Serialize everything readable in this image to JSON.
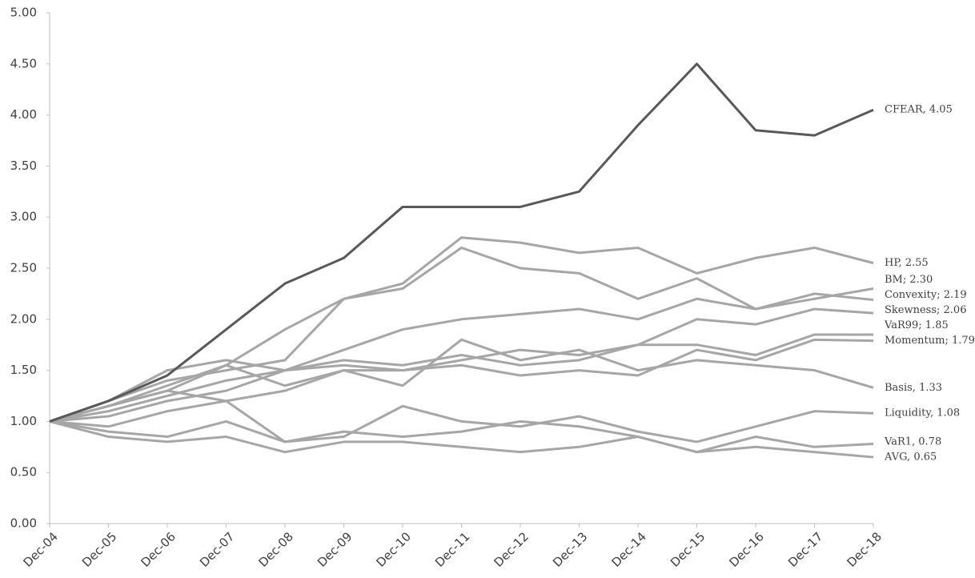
{
  "chart_data": {
    "type": "line",
    "categories": [
      "Dec-04",
      "Dec-05",
      "Dec-06",
      "Dec-07",
      "Dec-08",
      "Dec-09",
      "Dec-10",
      "Dec-11",
      "Dec-12",
      "Dec-13",
      "Dec-14",
      "Dec-15",
      "Dec-16",
      "Dec-17",
      "Dec-18"
    ],
    "ylim": [
      0,
      5
    ],
    "yticks": [
      {
        "value": 0,
        "label": "0.00"
      },
      {
        "value": 0.5,
        "label": "0.50"
      },
      {
        "value": 1,
        "label": "1.00"
      },
      {
        "value": 1.5,
        "label": "1.50"
      },
      {
        "value": 2,
        "label": "2.00"
      },
      {
        "value": 2.5,
        "label": "2.50"
      },
      {
        "value": 3,
        "label": "3.00"
      },
      {
        "value": 3.5,
        "label": "3.50"
      },
      {
        "value": 4,
        "label": "4.00"
      },
      {
        "value": 4.5,
        "label": "4.50"
      },
      {
        "value": 5,
        "label": "5.00"
      }
    ],
    "grid": false,
    "series": [
      {
        "name": "AVG, 0.65",
        "color": "#a6a6a6",
        "values": [
          1.0,
          0.85,
          0.8,
          0.85,
          0.7,
          0.8,
          0.8,
          0.75,
          0.7,
          0.75,
          0.85,
          0.7,
          0.75,
          0.7,
          0.65
        ]
      },
      {
        "name": "VaR1, 0.78",
        "color": "#a6a6a6",
        "values": [
          1.0,
          0.95,
          1.1,
          1.2,
          0.8,
          0.9,
          0.85,
          0.9,
          1.0,
          0.95,
          0.85,
          0.7,
          0.85,
          0.75,
          0.78
        ]
      },
      {
        "name": "Liquidity, 1.08",
        "color": "#a6a6a6",
        "values": [
          1.0,
          0.9,
          0.85,
          1.0,
          0.8,
          0.85,
          1.15,
          1.0,
          0.95,
          1.05,
          0.9,
          0.8,
          0.95,
          1.1,
          1.08
        ]
      },
      {
        "name": "Basis, 1.33",
        "color": "#a6a6a6",
        "values": [
          1.0,
          1.15,
          1.3,
          1.2,
          1.3,
          1.5,
          1.35,
          1.8,
          1.6,
          1.7,
          1.5,
          1.6,
          1.55,
          1.5,
          1.33
        ]
      },
      {
        "name": "Momentum; 1.79",
        "color": "#a6a6a6",
        "values": [
          1.0,
          1.2,
          1.5,
          1.6,
          1.5,
          1.55,
          1.5,
          1.55,
          1.45,
          1.5,
          1.45,
          1.7,
          1.6,
          1.8,
          1.79
        ]
      },
      {
        "name": "VaR99; 1.85",
        "color": "#a6a6a6",
        "values": [
          1.0,
          1.05,
          1.2,
          1.3,
          1.5,
          1.6,
          1.55,
          1.65,
          1.55,
          1.6,
          1.75,
          1.75,
          1.65,
          1.85,
          1.85
        ]
      },
      {
        "name": "Skewness; 2.06",
        "color": "#a6a6a6",
        "values": [
          1.0,
          1.15,
          1.3,
          1.55,
          1.35,
          1.5,
          1.5,
          1.6,
          1.7,
          1.65,
          1.75,
          2.0,
          1.95,
          2.1,
          2.06
        ]
      },
      {
        "name": "Convexity; 2.19",
        "color": "#a6a6a6",
        "values": [
          1.0,
          1.1,
          1.25,
          1.4,
          1.5,
          1.7,
          1.9,
          2.0,
          2.05,
          2.1,
          2.0,
          2.2,
          2.1,
          2.25,
          2.19
        ]
      },
      {
        "name": "BM; 2.30",
        "color": "#a6a6a6",
        "values": [
          1.0,
          1.2,
          1.4,
          1.5,
          1.6,
          2.2,
          2.3,
          2.7,
          2.5,
          2.45,
          2.2,
          2.4,
          2.1,
          2.2,
          2.3
        ]
      },
      {
        "name": "HP, 2.55",
        "color": "#a6a6a6",
        "values": [
          1.0,
          1.15,
          1.35,
          1.55,
          1.9,
          2.2,
          2.35,
          2.8,
          2.75,
          2.65,
          2.7,
          2.45,
          2.6,
          2.7,
          2.55
        ]
      },
      {
        "name": "CFEAR, 4.05",
        "color": "#595959",
        "values": [
          1.0,
          1.2,
          1.45,
          1.9,
          2.35,
          2.6,
          3.1,
          3.1,
          3.1,
          3.25,
          3.9,
          4.5,
          3.85,
          3.8,
          4.05
        ]
      }
    ]
  }
}
